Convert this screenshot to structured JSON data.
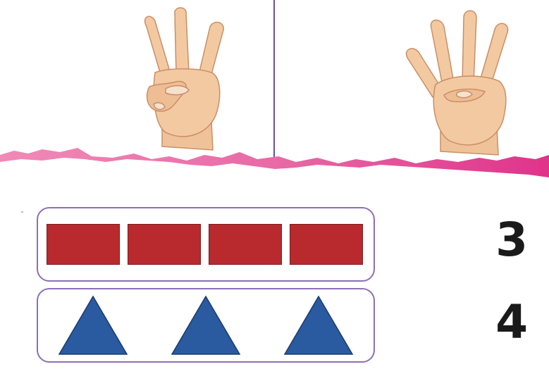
{
  "hands": [
    {
      "name": "three-fingers-hand",
      "fingers_shown": 3
    },
    {
      "name": "four-fingers-hand",
      "fingers_shown": 4
    }
  ],
  "rows": [
    {
      "shape": "square",
      "count": 4,
      "color": "#b82a2e"
    },
    {
      "shape": "triangle",
      "count": 3,
      "color": "#2a5aa0"
    }
  ],
  "numbers": [
    "3",
    "4"
  ],
  "colors": {
    "divider": "#6a4c9c",
    "box_border": "#8d6fb6",
    "torn_paper": "#e6579a",
    "skin": "#f3c9a1",
    "skin_shadow": "#d9a27a"
  }
}
